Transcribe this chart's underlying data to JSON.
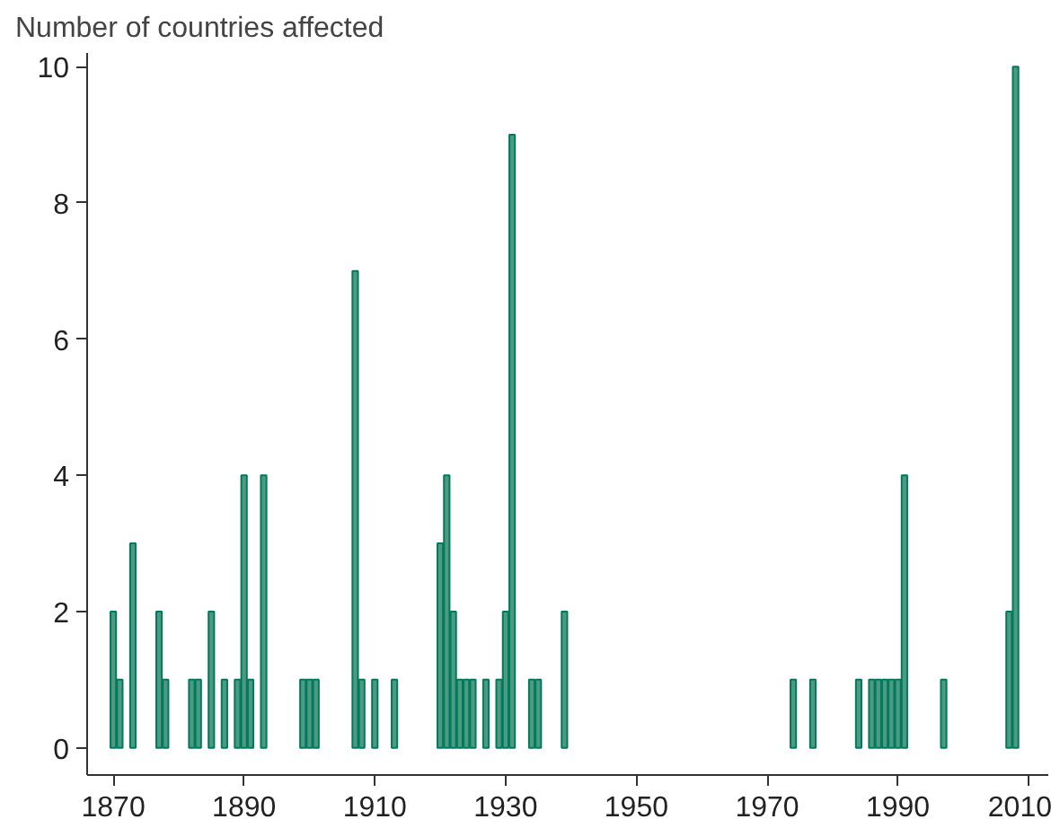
{
  "chart_data": {
    "type": "bar",
    "ylabel": "Number of countries affected",
    "x": [
      1870,
      1871,
      1873,
      1877,
      1878,
      1882,
      1883,
      1885,
      1887,
      1889,
      1890,
      1891,
      1893,
      1899,
      1900,
      1901,
      1907,
      1908,
      1910,
      1913,
      1920,
      1921,
      1922,
      1923,
      1924,
      1925,
      1927,
      1929,
      1930,
      1931,
      1934,
      1935,
      1939,
      1974,
      1977,
      1984,
      1986,
      1987,
      1988,
      1989,
      1990,
      1991,
      1997,
      2007,
      2008
    ],
    "values": [
      2,
      1,
      3,
      2,
      1,
      1,
      1,
      2,
      1,
      1,
      4,
      1,
      4,
      1,
      1,
      1,
      7,
      1,
      1,
      1,
      3,
      4,
      2,
      1,
      1,
      1,
      1,
      1,
      2,
      9,
      1,
      1,
      2,
      1,
      1,
      1,
      1,
      1,
      1,
      1,
      1,
      4,
      1,
      2,
      10
    ],
    "color": "#4e9a80",
    "xlim": [
      1866,
      2013
    ],
    "xticks": [
      1870,
      1890,
      1910,
      1930,
      1950,
      1970,
      1990,
      2010
    ],
    "ylim": [
      -0.4,
      10.2
    ],
    "yticks": [
      0,
      2,
      4,
      6,
      8,
      10
    ],
    "grid": false
  }
}
